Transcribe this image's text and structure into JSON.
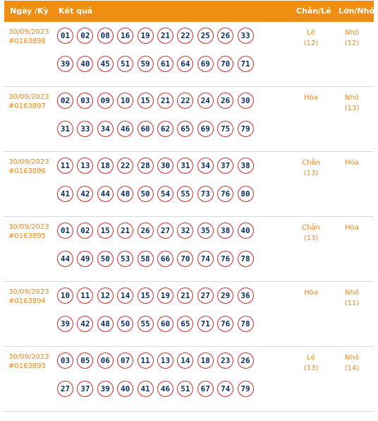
{
  "header": {
    "date_label": "Ngày /Kỳ",
    "result_label": "Kết quả",
    "parity_label": "Chẵn/Lẻ",
    "size_label": "Lớn/Nhỏ"
  },
  "colors": {
    "header_bg": "#ef8f12",
    "accent_text": "#f0851c",
    "ball_border": "#d8292b",
    "ball_text": "#0b2b66"
  },
  "rows": [
    {
      "date": "30/09/2023",
      "period": "#0163898",
      "line1": [
        "01",
        "02",
        "08",
        "16",
        "19",
        "21",
        "22",
        "25",
        "26",
        "33"
      ],
      "line2": [
        "39",
        "40",
        "45",
        "51",
        "59",
        "61",
        "64",
        "69",
        "70",
        "71"
      ],
      "parity": "Lẻ",
      "parity_count": "(12)",
      "size": "Nhỏ",
      "size_count": "(12)"
    },
    {
      "date": "30/09/2023",
      "period": "#0163897",
      "line1": [
        "02",
        "03",
        "09",
        "10",
        "15",
        "21",
        "22",
        "24",
        "26",
        "30"
      ],
      "line2": [
        "31",
        "33",
        "34",
        "46",
        "60",
        "62",
        "65",
        "69",
        "75",
        "79"
      ],
      "parity": "Hòa",
      "parity_count": "",
      "size": "Nhỏ",
      "size_count": "(13)"
    },
    {
      "date": "30/09/2023",
      "period": "#0163896",
      "line1": [
        "11",
        "13",
        "18",
        "22",
        "28",
        "30",
        "31",
        "34",
        "37",
        "38"
      ],
      "line2": [
        "41",
        "42",
        "44",
        "48",
        "50",
        "54",
        "55",
        "73",
        "76",
        "80"
      ],
      "parity": "Chẵn",
      "parity_count": "(13)",
      "size": "Hòa",
      "size_count": ""
    },
    {
      "date": "30/09/2023",
      "period": "#0163895",
      "line1": [
        "01",
        "02",
        "15",
        "21",
        "26",
        "27",
        "32",
        "35",
        "38",
        "40"
      ],
      "line2": [
        "44",
        "49",
        "50",
        "53",
        "58",
        "66",
        "70",
        "74",
        "76",
        "78"
      ],
      "parity": "Chẵn",
      "parity_count": "(13)",
      "size": "Hòa",
      "size_count": ""
    },
    {
      "date": "30/09/2023",
      "period": "#0163894",
      "line1": [
        "10",
        "11",
        "12",
        "14",
        "15",
        "19",
        "21",
        "27",
        "29",
        "36"
      ],
      "line2": [
        "39",
        "42",
        "48",
        "50",
        "55",
        "60",
        "65",
        "71",
        "76",
        "78"
      ],
      "parity": "Hòa",
      "parity_count": "",
      "size": "Nhỏ",
      "size_count": "(11)"
    },
    {
      "date": "30/09/2023",
      "period": "#0163893",
      "line1": [
        "03",
        "05",
        "06",
        "07",
        "11",
        "13",
        "14",
        "18",
        "23",
        "26"
      ],
      "line2": [
        "27",
        "37",
        "39",
        "40",
        "41",
        "46",
        "51",
        "67",
        "74",
        "79"
      ],
      "parity": "Lẻ",
      "parity_count": "(13)",
      "size": "Nhỏ",
      "size_count": "(14)"
    }
  ]
}
